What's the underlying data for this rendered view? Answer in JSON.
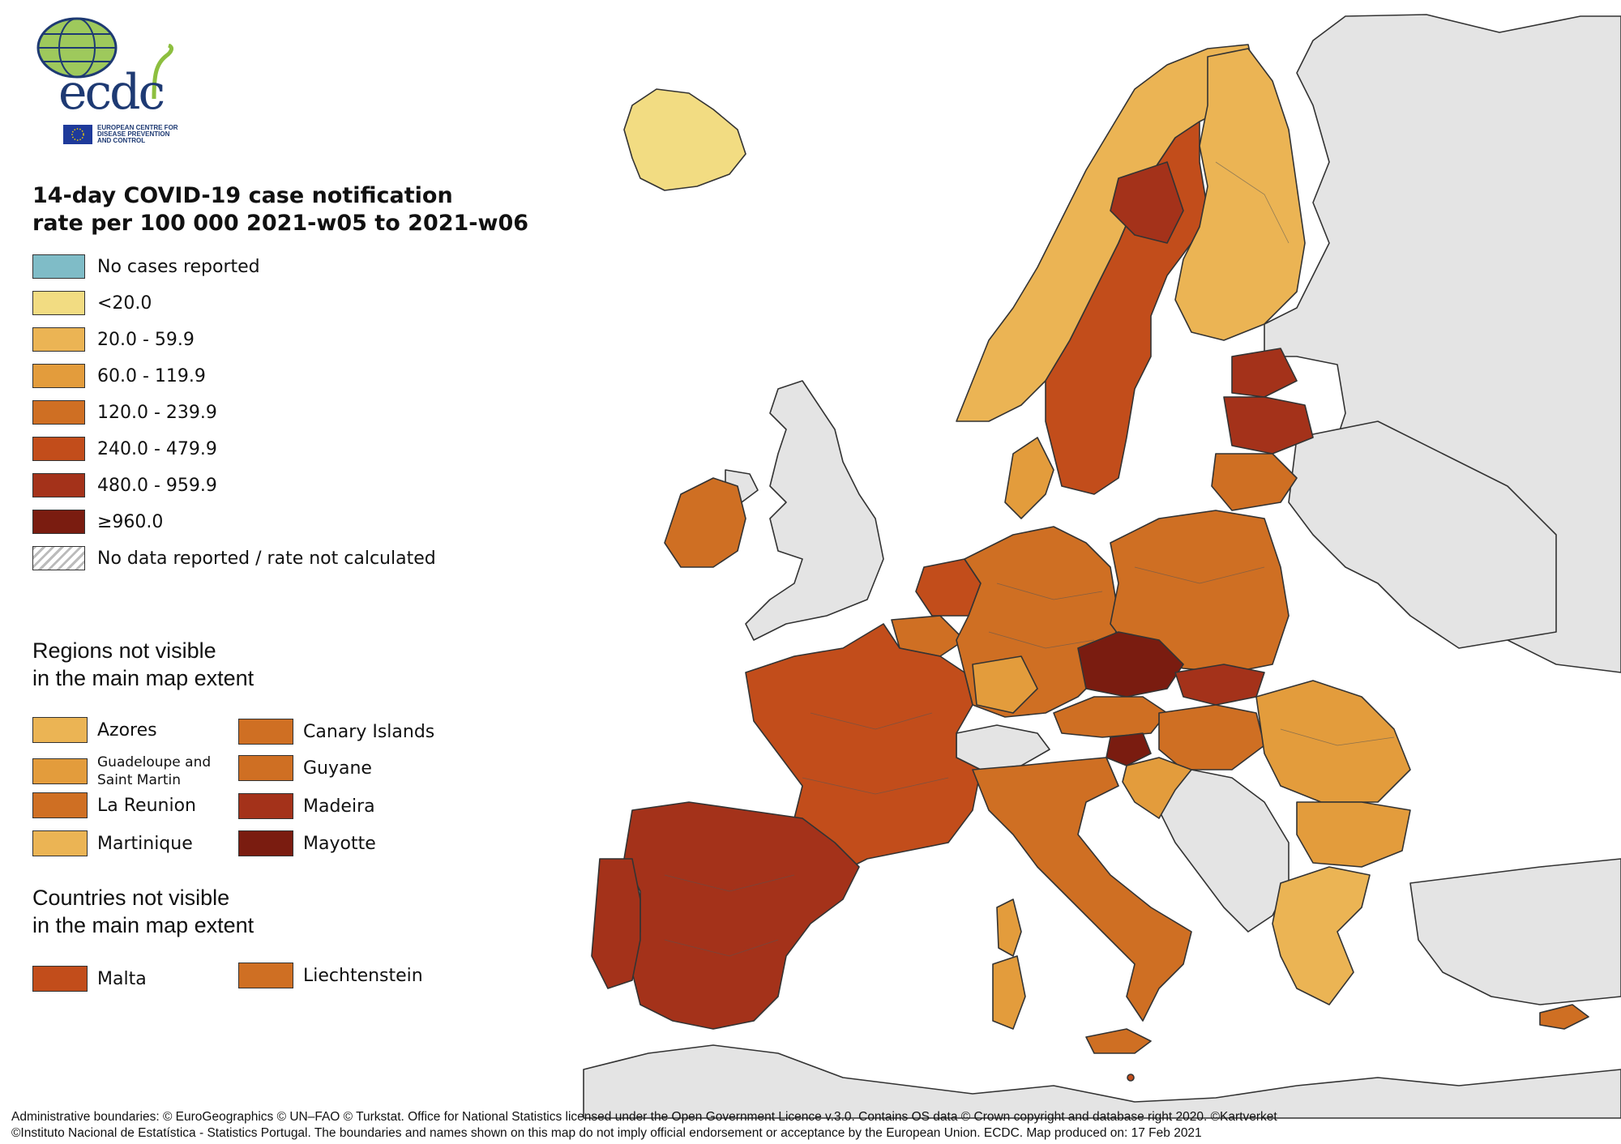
{
  "logo": {
    "wordmark": "ecdc",
    "agency_lines": [
      "EUROPEAN CENTRE FOR",
      "DISEASE PREVENTION",
      "AND CONTROL"
    ]
  },
  "title_lines": [
    "14-day COVID-19 case notification",
    "rate per 100 000 2021-w05 to 2021-w06"
  ],
  "legend": [
    {
      "label": "No cases reported",
      "color": "#7fbcc7"
    },
    {
      "label": "<20.0",
      "color": "#f2dc82"
    },
    {
      "label": "20.0 - 59.9",
      "color": "#ebb454"
    },
    {
      "label": "60.0 - 119.9",
      "color": "#e39c3c"
    },
    {
      "label": "120.0 - 239.9",
      "color": "#cf6f23"
    },
    {
      "label": "240.0 - 479.9",
      "color": "#c24d1b"
    },
    {
      "label": "480.0 - 959.9",
      "color": "#a4321a"
    },
    {
      "label": "≥960.0",
      "color": "#7a1c10"
    },
    {
      "label": "No data reported / rate not calculated",
      "color": "hatched"
    }
  ],
  "regions_heading": [
    "Regions not visible",
    "in the main map extent"
  ],
  "regions": [
    {
      "name": "Azores",
      "color": "#ebb454"
    },
    {
      "name": "Canary Islands",
      "color": "#cf6f23"
    },
    {
      "name": "Guadeloupe and Saint Martin",
      "color": "#e39c3c"
    },
    {
      "name": "Guyane",
      "color": "#cf6f23"
    },
    {
      "name": "La Reunion",
      "color": "#cf6f23"
    },
    {
      "name": "Madeira",
      "color": "#a4321a"
    },
    {
      "name": "Martinique",
      "color": "#ebb454"
    },
    {
      "name": "Mayotte",
      "color": "#7a1c10"
    }
  ],
  "countries_heading": [
    "Countries not visible",
    "in the main map extent"
  ],
  "countries": [
    {
      "name": "Malta",
      "color": "#c24d1b"
    },
    {
      "name": "Liechtenstein",
      "color": "#cf6f23"
    }
  ],
  "footer_lines": [
    "Administrative boundaries: © EuroGeographics © UN–FAO © Turkstat. Office for National Statistics licensed under the Open Government Licence v.3.0. Contains OS data © Crown copyright and database right 2020. ©Kartverket",
    "©Instituto Nacional de Estatística - Statistics Portugal. The boundaries and names shown on this map do not imply official endorsement or acceptance by the European Union. ECDC. Map produced on: 17 Feb 2021"
  ],
  "map": {
    "sea_color": "#ffffff",
    "non_eu_color": "#e4e4e4",
    "country_fills": {
      "Iceland": "#f2dc82",
      "Norway": "#ebb454",
      "Sweden": "#c24d1b",
      "Finland": "#ebb454",
      "Estonia": "#a4321a",
      "Latvia": "#a4321a",
      "Lithuania": "#cf6f23",
      "Denmark": "#e39c3c",
      "Ireland": "#cf6f23",
      "Netherlands": "#c24d1b",
      "Belgium": "#cf6f23",
      "Luxembourg": "#c24d1b",
      "Germany": "#cf6f23",
      "Poland": "#cf6f23",
      "Czechia": "#7a1c10",
      "Slovakia": "#a4321a",
      "Austria": "#cf6f23",
      "Slovenia": "#7a1c10",
      "Hungary": "#cf6f23",
      "Croatia": "#e39c3c",
      "Romania": "#e39c3c",
      "Bulgaria": "#e39c3c",
      "Greece": "#ebb454",
      "Cyprus": "#cf6f23",
      "France": "#c24d1b",
      "Spain": "#a4321a",
      "Portugal": "#a4321a",
      "Italy": "#cf6f23"
    }
  }
}
